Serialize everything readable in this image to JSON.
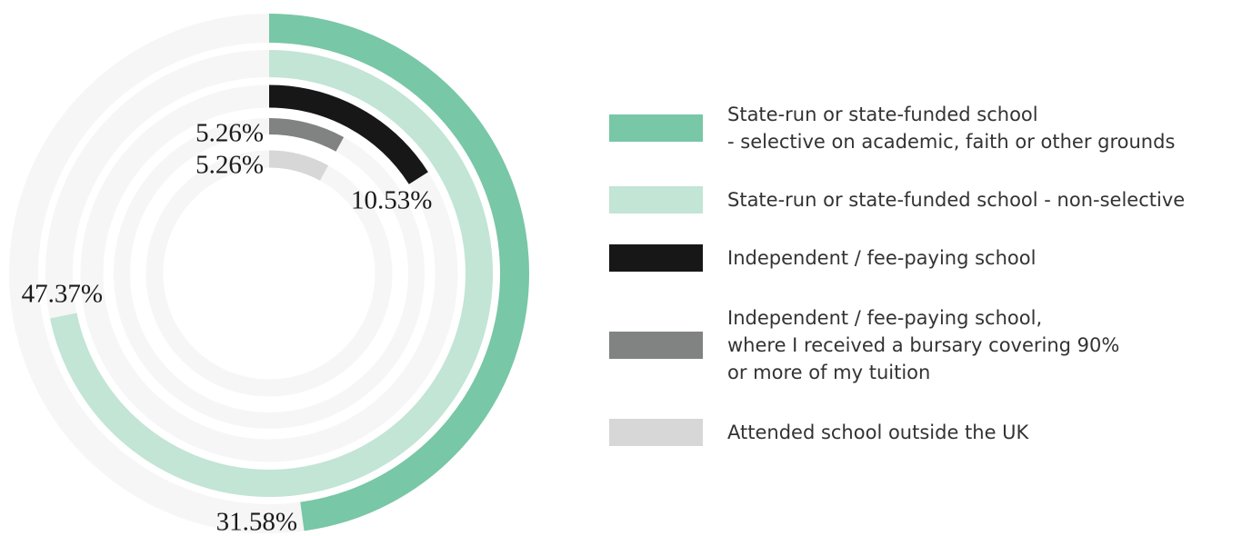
{
  "chart_data": {
    "type": "radial-bar",
    "ylim": [
      0,
      66
    ],
    "series": [
      {
        "name": "State-run or state-funded school\n- selective on academic, faith or other grounds",
        "color": "#78c7a6",
        "values": [
          31.58
        ],
        "value_labels": [
          "31.58%"
        ]
      },
      {
        "name": "State-run or state-funded school - non-selective",
        "color": "#c2e5d5",
        "values": [
          47.37
        ],
        "value_labels": [
          "47.37%"
        ]
      },
      {
        "name": "Independent / fee-paying school",
        "color": "#171717",
        "values": [
          10.53
        ],
        "value_labels": [
          "10.53%"
        ]
      },
      {
        "name": "Independent / fee-paying school,\nwhere I received a bursary covering 90%\nor more of my tuition",
        "color": "#808382",
        "values": [
          5.26
        ],
        "value_labels": [
          "5.26%"
        ]
      },
      {
        "name": "Attended school outside the UK",
        "color": "#d6d7d6",
        "values": [
          5.26
        ],
        "value_labels": [
          "5.26%"
        ]
      }
    ]
  }
}
